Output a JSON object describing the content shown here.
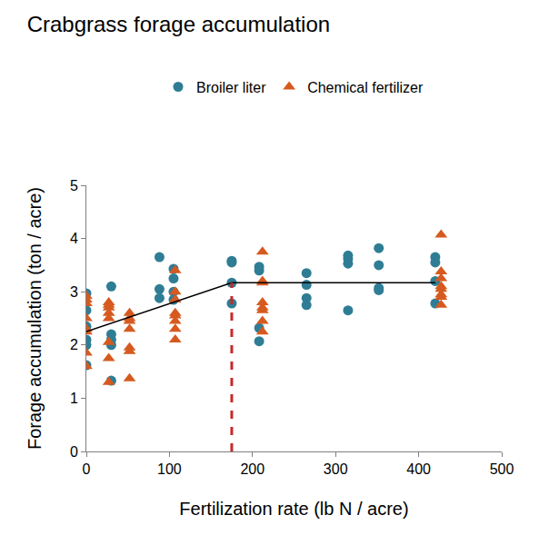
{
  "chart_data": {
    "type": "scatter",
    "title": "Crabgrass forage accumulation",
    "x_label": "Fertilization rate (lb N / acre)",
    "y_label": "Forage accumulation (ton / acre)",
    "xlim": [
      0,
      500
    ],
    "ylim": [
      0,
      5
    ],
    "xticks": [
      0,
      100,
      200,
      300,
      400,
      500
    ],
    "yticks": [
      0,
      1,
      2,
      3,
      4,
      5
    ],
    "grid": false,
    "legend": "top",
    "series": [
      {
        "name": "Broiler liter",
        "type": "scatter",
        "marker": "circle",
        "color": "#2f7d95",
        "x": [
          0,
          0,
          0,
          0,
          0,
          0,
          30,
          30,
          30,
          30,
          30,
          88,
          88,
          88,
          105,
          105,
          105,
          105,
          175,
          175,
          175,
          175,
          208,
          208,
          208,
          208,
          265,
          265,
          265,
          265,
          315,
          315,
          315,
          315,
          352,
          352,
          352,
          352,
          420,
          420,
          420,
          420
        ],
        "values": [
          2.97,
          2.65,
          2.35,
          2.1,
          2.0,
          1.62,
          3.1,
          2.2,
          2.1,
          2.0,
          1.33,
          3.65,
          3.05,
          2.88,
          3.43,
          3.25,
          3.0,
          2.85,
          3.58,
          3.55,
          3.17,
          2.78,
          3.47,
          3.4,
          2.32,
          2.07,
          3.35,
          3.13,
          2.88,
          2.75,
          3.68,
          3.62,
          3.53,
          2.65,
          3.82,
          3.5,
          3.07,
          3.03,
          3.65,
          3.55,
          3.2,
          2.78
        ]
      },
      {
        "name": "Chemical fertilizer",
        "type": "scatter",
        "marker": "triangle-up",
        "color": "#d65a1f",
        "x": [
          0,
          0,
          0,
          0,
          0,
          0,
          0,
          0,
          27,
          27,
          27,
          27,
          27,
          27,
          27,
          27,
          52,
          52,
          52,
          52,
          52,
          52,
          52,
          107,
          107,
          107,
          107,
          107,
          107,
          107,
          107,
          212,
          212,
          212,
          212,
          212,
          212,
          212,
          212,
          427,
          427,
          427,
          427,
          427,
          427,
          427,
          427
        ],
        "values": [
          2.92,
          2.85,
          2.78,
          2.5,
          2.3,
          2.25,
          1.85,
          1.6,
          2.8,
          2.75,
          2.7,
          2.6,
          2.5,
          2.05,
          1.75,
          1.3,
          2.6,
          2.5,
          2.45,
          2.3,
          1.95,
          1.88,
          1.37,
          3.4,
          3.0,
          2.85,
          2.6,
          2.55,
          2.45,
          2.3,
          2.1,
          3.75,
          3.2,
          3.17,
          2.8,
          2.7,
          2.65,
          2.45,
          2.25,
          4.07,
          3.38,
          3.25,
          3.1,
          3.05,
          2.95,
          2.9,
          2.75
        ]
      },
      {
        "type": "line",
        "line_style": "solid",
        "color": "#000000",
        "x": [
          0,
          175,
          420
        ],
        "values": [
          2.25,
          3.17,
          3.17
        ]
      },
      {
        "type": "line",
        "line_style": "dashed",
        "color": "#c8282a",
        "x": [
          175,
          175
        ],
        "values": [
          0,
          3.17
        ]
      }
    ]
  }
}
